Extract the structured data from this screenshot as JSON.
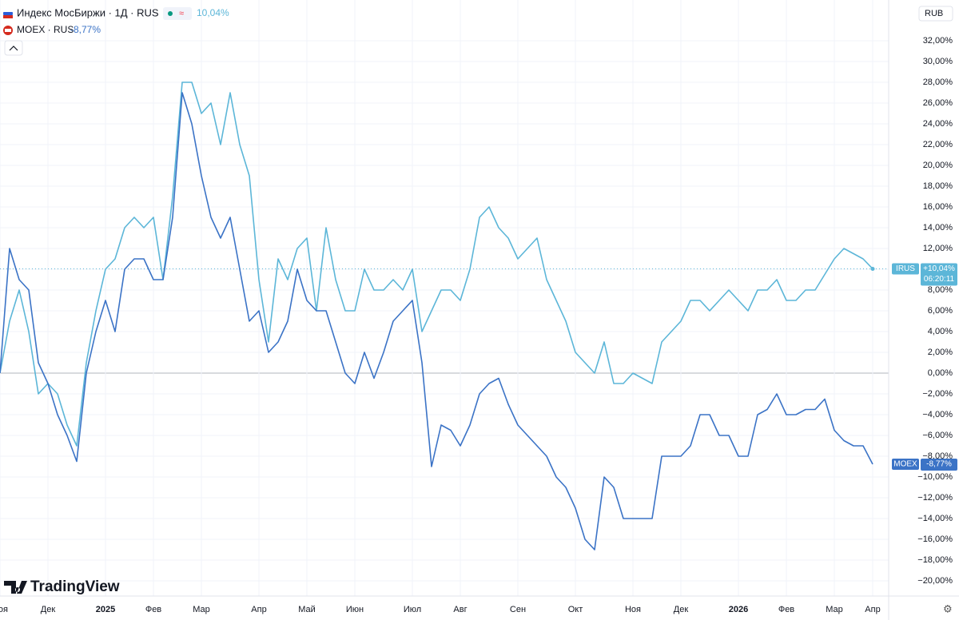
{
  "chart_data": {
    "type": "line",
    "currency": "RUB",
    "brand": "TradingView",
    "categories": [
      "Ноя",
      null,
      null,
      null,
      null,
      "Дек",
      null,
      null,
      null,
      null,
      null,
      "2025",
      null,
      null,
      null,
      null,
      "Фев",
      null,
      null,
      null,
      null,
      "Мар",
      null,
      null,
      null,
      null,
      null,
      "Апр",
      null,
      null,
      null,
      null,
      "Май",
      null,
      null,
      null,
      null,
      "Июн",
      null,
      null,
      null,
      null,
      null,
      "Июл",
      null,
      null,
      null,
      null,
      "Авг",
      null,
      null,
      null,
      null,
      null,
      "Сен",
      null,
      null,
      null,
      null,
      null,
      "Окт",
      null,
      null,
      null,
      null,
      null,
      "Ноя",
      null,
      null,
      null,
      null,
      "Дек",
      null,
      null,
      null,
      null,
      null,
      "2026",
      null,
      null,
      null,
      null,
      "Фев",
      null,
      null,
      null,
      null,
      "Мар",
      null,
      null,
      null,
      "Апр"
    ],
    "series": [
      {
        "name": "Индекс МосБиржи · 1Д · RUS",
        "symbol": "IRUS",
        "color": "#5cb6d8",
        "header_label": "10,04%",
        "last_label": "+10,04%",
        "countdown": "06:20:11",
        "values": [
          0,
          5,
          8,
          4,
          -2,
          -1,
          -2,
          -5,
          -7,
          1,
          6,
          10,
          11,
          14,
          15,
          14,
          15,
          9,
          17,
          28,
          28,
          25,
          26,
          22,
          27,
          22,
          19,
          9,
          3,
          11,
          9,
          12,
          13,
          6,
          14,
          9,
          6,
          6,
          10,
          8,
          8,
          9,
          8,
          10,
          4,
          6,
          8,
          8,
          7,
          10,
          15,
          16,
          14,
          13,
          11,
          12,
          13,
          9,
          7,
          5,
          2,
          1,
          0,
          3,
          -1,
          -1,
          0,
          -0.5,
          -1,
          3,
          4,
          5,
          7,
          7,
          6,
          7,
          8,
          7,
          6,
          8,
          8,
          9,
          7,
          7,
          8,
          8,
          9.5,
          11,
          12,
          11.5,
          11,
          10.04
        ]
      },
      {
        "name": "MOEX · RUS",
        "symbol": "MOEX",
        "color": "#3b73c6",
        "header_label": "-8,77%",
        "last_label": "-8,77%",
        "values": [
          0,
          12,
          9,
          8,
          1,
          -1,
          -4,
          -6,
          -8.5,
          0,
          4,
          7,
          4,
          10,
          11,
          11,
          9,
          9,
          15,
          27,
          24,
          19,
          15,
          13,
          15,
          10,
          5,
          6,
          2,
          3,
          5,
          10,
          7,
          6,
          6,
          3,
          0,
          -1,
          2,
          -0.5,
          2,
          5,
          6,
          7,
          1,
          -9,
          -5,
          -5.5,
          -7,
          -5,
          -2,
          -1,
          -0.5,
          -3,
          -5,
          -6,
          -7,
          -8,
          -10,
          -11,
          -13,
          -16,
          -17,
          -10,
          -11,
          -14,
          -14,
          -14,
          -14,
          -8,
          -8,
          -8,
          -7,
          -4,
          -4,
          -6,
          -6,
          -8,
          -8,
          -4,
          -3.5,
          -2,
          -4,
          -4,
          -3.5,
          -3.5,
          -2.5,
          -5.5,
          -6.5,
          -7,
          -7,
          -8.77
        ]
      }
    ],
    "ylim": [
      -21,
      33
    ],
    "yticks": [
      {
        "value": 32,
        "label": "32,00%"
      },
      {
        "value": 30,
        "label": "30,00%"
      },
      {
        "value": 28,
        "label": "28,00%"
      },
      {
        "value": 26,
        "label": "26,00%"
      },
      {
        "value": 24,
        "label": "24,00%"
      },
      {
        "value": 22,
        "label": "22,00%"
      },
      {
        "value": 20,
        "label": "20,00%"
      },
      {
        "value": 18,
        "label": "18,00%"
      },
      {
        "value": 16,
        "label": "16,00%"
      },
      {
        "value": 14,
        "label": "14,00%"
      },
      {
        "value": 12,
        "label": "12,00%"
      },
      {
        "value": 10,
        "label": "10,00%"
      },
      {
        "value": 8,
        "label": "8,00%"
      },
      {
        "value": 6,
        "label": "6,00%"
      },
      {
        "value": 4,
        "label": "4,00%"
      },
      {
        "value": 2,
        "label": "2,00%"
      },
      {
        "value": 0,
        "label": "0,00%"
      },
      {
        "value": -2,
        "label": "−2,00%"
      },
      {
        "value": -4,
        "label": "−4,00%"
      },
      {
        "value": -6,
        "label": "−6,00%"
      },
      {
        "value": -8,
        "label": "−8,00%"
      },
      {
        "value": -10,
        "label": "−10,00%"
      },
      {
        "value": -12,
        "label": "−12,00%"
      },
      {
        "value": -14,
        "label": "−14,00%"
      },
      {
        "value": -16,
        "label": "−16,00%"
      },
      {
        "value": -18,
        "label": "−18,00%"
      },
      {
        "value": -20,
        "label": "−20,00%"
      }
    ],
    "grid": true
  }
}
